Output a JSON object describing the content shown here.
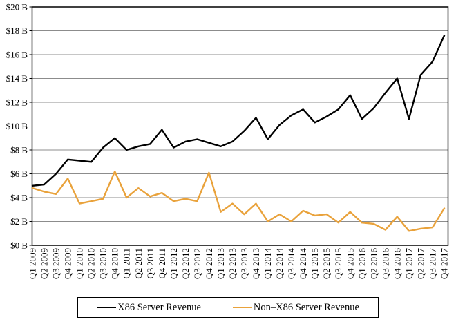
{
  "chart_data": {
    "type": "line",
    "title": "",
    "xlabel": "",
    "ylabel": "",
    "ylim": [
      0,
      20
    ],
    "ytick_step": 2,
    "ytick_labels": [
      "$0 B",
      "$2 B",
      "$4 B",
      "$6 B",
      "$8 B",
      "$10 B",
      "$12 B",
      "$14 B",
      "$16 B",
      "$18 B",
      "$20 B"
    ],
    "grid": "horizontal",
    "legend_position": "bottom",
    "categories": [
      "Q1 2009",
      "Q2 2009",
      "Q3 2009",
      "Q4 2009",
      "Q1 2010",
      "Q2 2010",
      "Q3 2010",
      "Q4 2010",
      "Q1 2011",
      "Q2 2011",
      "Q3 2011",
      "Q4 2011",
      "Q1 2012",
      "Q2 2012",
      "Q3 2012",
      "Q4 2012",
      "Q1 2013",
      "Q2 2013",
      "Q3 2013",
      "Q4 2013",
      "Q1 2014",
      "Q2 2014",
      "Q3 2014",
      "Q4 2014",
      "Q1 2015",
      "Q2 2015",
      "Q3 2015",
      "Q4 2015",
      "Q1 2016",
      "Q2 2016",
      "Q3 2016",
      "Q4 2016",
      "Q1 2017",
      "Q2 2017",
      "Q3 2017",
      "Q4 2017"
    ],
    "series": [
      {
        "name": "X86 Server Revenue",
        "color": "#000000",
        "values": [
          5.0,
          5.1,
          6.0,
          7.2,
          7.1,
          7.0,
          8.2,
          9.0,
          8.0,
          8.3,
          8.5,
          9.7,
          8.2,
          8.7,
          8.9,
          8.6,
          8.3,
          8.7,
          9.6,
          10.7,
          8.9,
          10.1,
          10.9,
          11.4,
          10.3,
          10.8,
          11.4,
          12.6,
          10.6,
          11.5,
          12.8,
          14.0,
          10.6,
          14.3,
          15.4,
          17.6
        ]
      },
      {
        "name": "Non–X86 Server Revenue",
        "color": "#E9A23B",
        "values": [
          4.8,
          4.5,
          4.3,
          5.6,
          3.5,
          3.7,
          3.9,
          6.2,
          4.0,
          4.8,
          4.1,
          4.4,
          3.7,
          3.9,
          3.7,
          6.1,
          2.8,
          3.5,
          2.6,
          3.5,
          2.0,
          2.6,
          2.0,
          2.9,
          2.5,
          2.6,
          1.9,
          2.8,
          1.9,
          1.8,
          1.3,
          2.4,
          1.2,
          1.4,
          1.5,
          3.1
        ]
      }
    ],
    "colors": {
      "gridline": "#8c8c8c",
      "plot_border": "#000000"
    }
  }
}
